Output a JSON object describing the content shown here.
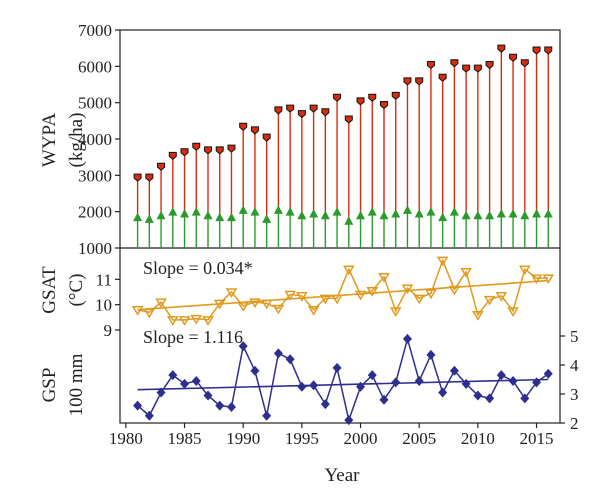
{
  "chart_data": [
    {
      "panel": "wypa",
      "type": "bar",
      "ylabel_line1": "WYPA",
      "ylabel_line2": "(kg/ha)",
      "ylim": [
        1000,
        7000
      ],
      "yticks": [
        1000,
        2000,
        3000,
        4000,
        5000,
        6000,
        7000
      ],
      "colors": {
        "upper": "#d62c0f",
        "lower": "#2a9a2a",
        "cap": "#111111"
      },
      "series": [
        {
          "values": [
            2950,
            2950,
            3250,
            3550,
            3650,
            3800,
            3700,
            3700,
            3750,
            4350,
            4250,
            4050,
            4800,
            4850,
            4700,
            4850,
            4750,
            5150,
            4550,
            5050,
            5150,
            4950,
            5200,
            5600,
            5600,
            6050,
            5700,
            6100,
            5950,
            5950,
            6050,
            6500,
            6250,
            6100,
            6450,
            6450
          ]
        },
        {
          "values": [
            1850,
            1800,
            1900,
            2000,
            1950,
            2000,
            1900,
            1850,
            1850,
            2050,
            2000,
            1800,
            2050,
            2000,
            1900,
            1950,
            1900,
            2000,
            1750,
            1900,
            2000,
            1900,
            1950,
            2050,
            1950,
            2000,
            1850,
            2000,
            1900,
            1900,
            1900,
            1950,
            1950,
            1900,
            1950,
            1950
          ]
        }
      ]
    },
    {
      "panel": "gsat",
      "type": "line",
      "ylabel_line1": "GSAT",
      "ylabel_line2": "(°C)",
      "ylim": [
        9,
        12
      ],
      "yticks": [
        9,
        10,
        11
      ],
      "annotation": "Slope = 0.034*",
      "color": "#e09a1f",
      "values": [
        9.8,
        9.7,
        10.1,
        9.4,
        9.4,
        9.45,
        9.4,
        10.05,
        10.5,
        9.95,
        10.1,
        10.05,
        9.85,
        10.4,
        10.35,
        9.8,
        10.25,
        10.25,
        11.4,
        10.4,
        10.55,
        11.1,
        9.75,
        10.65,
        10.25,
        10.45,
        11.75,
        10.6,
        11.3,
        9.6,
        10.2,
        10.35,
        9.75,
        11.4,
        11.05,
        11.05
      ],
      "trend": [
        9.8,
        10.95
      ]
    },
    {
      "panel": "gsp",
      "type": "line",
      "ylabel_line1": "GSP",
      "ylabel_line2": "100 mm",
      "ylim": [
        2,
        5
      ],
      "yticks": [
        2,
        3,
        4,
        5
      ],
      "annotation": "Slope = 1.116",
      "color": "#2e2e8f",
      "values": [
        2.6,
        2.25,
        3.05,
        3.65,
        3.35,
        3.45,
        2.95,
        2.6,
        2.55,
        4.65,
        3.8,
        2.25,
        4.4,
        4.2,
        3.25,
        3.3,
        2.65,
        3.9,
        2.1,
        3.25,
        3.65,
        2.8,
        3.4,
        4.9,
        3.45,
        4.35,
        3.05,
        3.8,
        3.35,
        2.95,
        2.85,
        3.65,
        3.45,
        2.85,
        3.4,
        3.7
      ],
      "trend": [
        3.15,
        3.5
      ]
    }
  ],
  "x": [
    1981,
    1982,
    1983,
    1984,
    1985,
    1986,
    1987,
    1988,
    1989,
    1990,
    1991,
    1992,
    1993,
    1994,
    1995,
    1996,
    1997,
    1998,
    1999,
    2000,
    2001,
    2002,
    2003,
    2004,
    2005,
    2006,
    2007,
    2008,
    2009,
    2010,
    2011,
    2012,
    2013,
    2014,
    2015,
    2016
  ],
  "xticks": [
    1980,
    1985,
    1990,
    1995,
    2000,
    2005,
    2010,
    2015
  ],
  "xlim": [
    1979.5,
    2017
  ],
  "xlabel": "Year"
}
